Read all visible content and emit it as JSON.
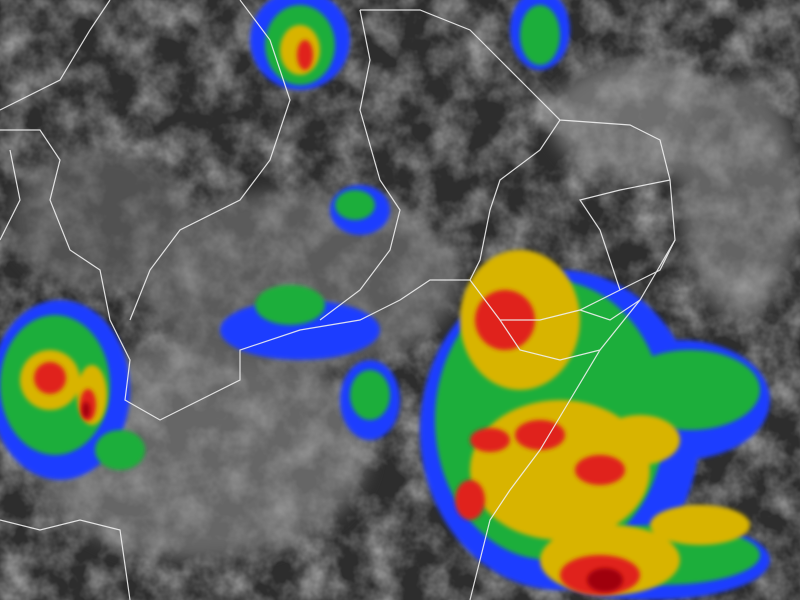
{
  "map": {
    "kind": "infrared-satellite-imagery",
    "colors": {
      "background_dark": "#2b2b2b",
      "cloud_gray": "#8a8a8a",
      "cloud_light": "#c8c8c8",
      "level_blue": "#1e3cff",
      "level_green": "#1fae3a",
      "level_yellow": "#d8b400",
      "level_red": "#e0201a",
      "level_darkred": "#a0000a",
      "border_line": "#f0f0f0"
    }
  }
}
